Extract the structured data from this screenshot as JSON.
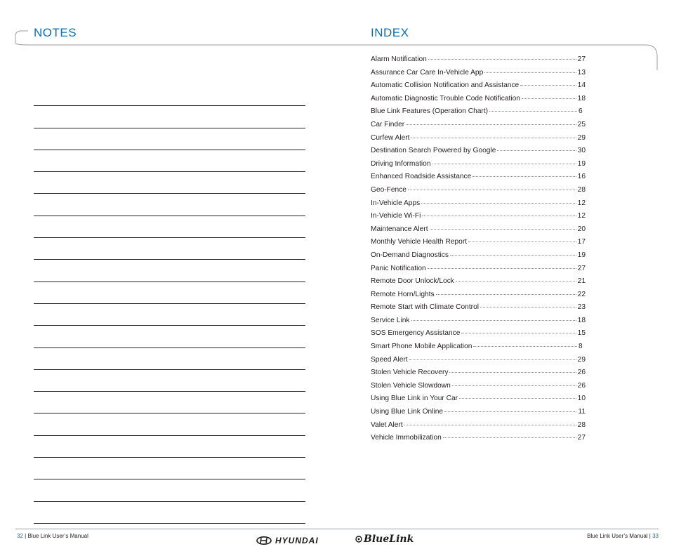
{
  "notes": {
    "title": "NOTES",
    "line_count": 20
  },
  "index": {
    "title": "INDEX",
    "entries": [
      {
        "label": "Alarm Notification",
        "page": "27"
      },
      {
        "label": "Assurance Car Care In-Vehicle App",
        "page": "13"
      },
      {
        "label": "Automatic Collision Notification and Assistance",
        "page": "14"
      },
      {
        "label": "Automatic Diagnostic Trouble Code Notification",
        "page": "18"
      },
      {
        "label": "Blue Link Features (Operation Chart)",
        "page": "6"
      },
      {
        "label": "Car Finder",
        "page": "25"
      },
      {
        "label": "Curfew Alert",
        "page": "29"
      },
      {
        "label": "Destination Search Powered by Google",
        "page": "30"
      },
      {
        "label": "Driving Information",
        "page": "19"
      },
      {
        "label": "Enhanced Roadside Assistance",
        "page": "16"
      },
      {
        "label": "Geo-Fence",
        "page": "28"
      },
      {
        "label": "In-Vehicle Apps",
        "page": "12"
      },
      {
        "label": "In-Vehicle Wi-Fi",
        "page": "12"
      },
      {
        "label": "Maintenance Alert",
        "page": "20"
      },
      {
        "label": "Monthly Vehicle Health Report",
        "page": "17"
      },
      {
        "label": "On-Demand Diagnostics",
        "page": "19"
      },
      {
        "label": "Panic Notification",
        "page": "27"
      },
      {
        "label": "Remote Door Unlock/Lock",
        "page": "21"
      },
      {
        "label": "Remote Horn/Lights",
        "page": "22"
      },
      {
        "label": "Remote Start with Climate Control",
        "page": "23"
      },
      {
        "label": "Service Link",
        "page": "18"
      },
      {
        "label": "SOS Emergency Assistance",
        "page": "15"
      },
      {
        "label": "Smart Phone Mobile Application",
        "page": "8"
      },
      {
        "label": "Speed Alert",
        "page": "29"
      },
      {
        "label": "Stolen Vehicle Recovery",
        "page": "26"
      },
      {
        "label": "Stolen Vehicle Slowdown",
        "page": "26"
      },
      {
        "label": "Using Blue Link in Your Car",
        "page": "10"
      },
      {
        "label": "Using Blue Link Online",
        "page": "11"
      },
      {
        "label": "Valet Alert",
        "page": "28"
      },
      {
        "label": "Vehicle Immobilization",
        "page": "27"
      }
    ]
  },
  "footer": {
    "left_page": "32",
    "left_text": "Blue Link User’s Manual",
    "right_text": "Blue Link User’s Manual",
    "right_page": "33",
    "separator": "|",
    "brand_hyundai": "HYUNDAI",
    "brand_bluelink": "BlueLink"
  },
  "colors": {
    "accent": "#0a6fb5",
    "text": "#231f20",
    "rule": "#9aa0a6"
  }
}
